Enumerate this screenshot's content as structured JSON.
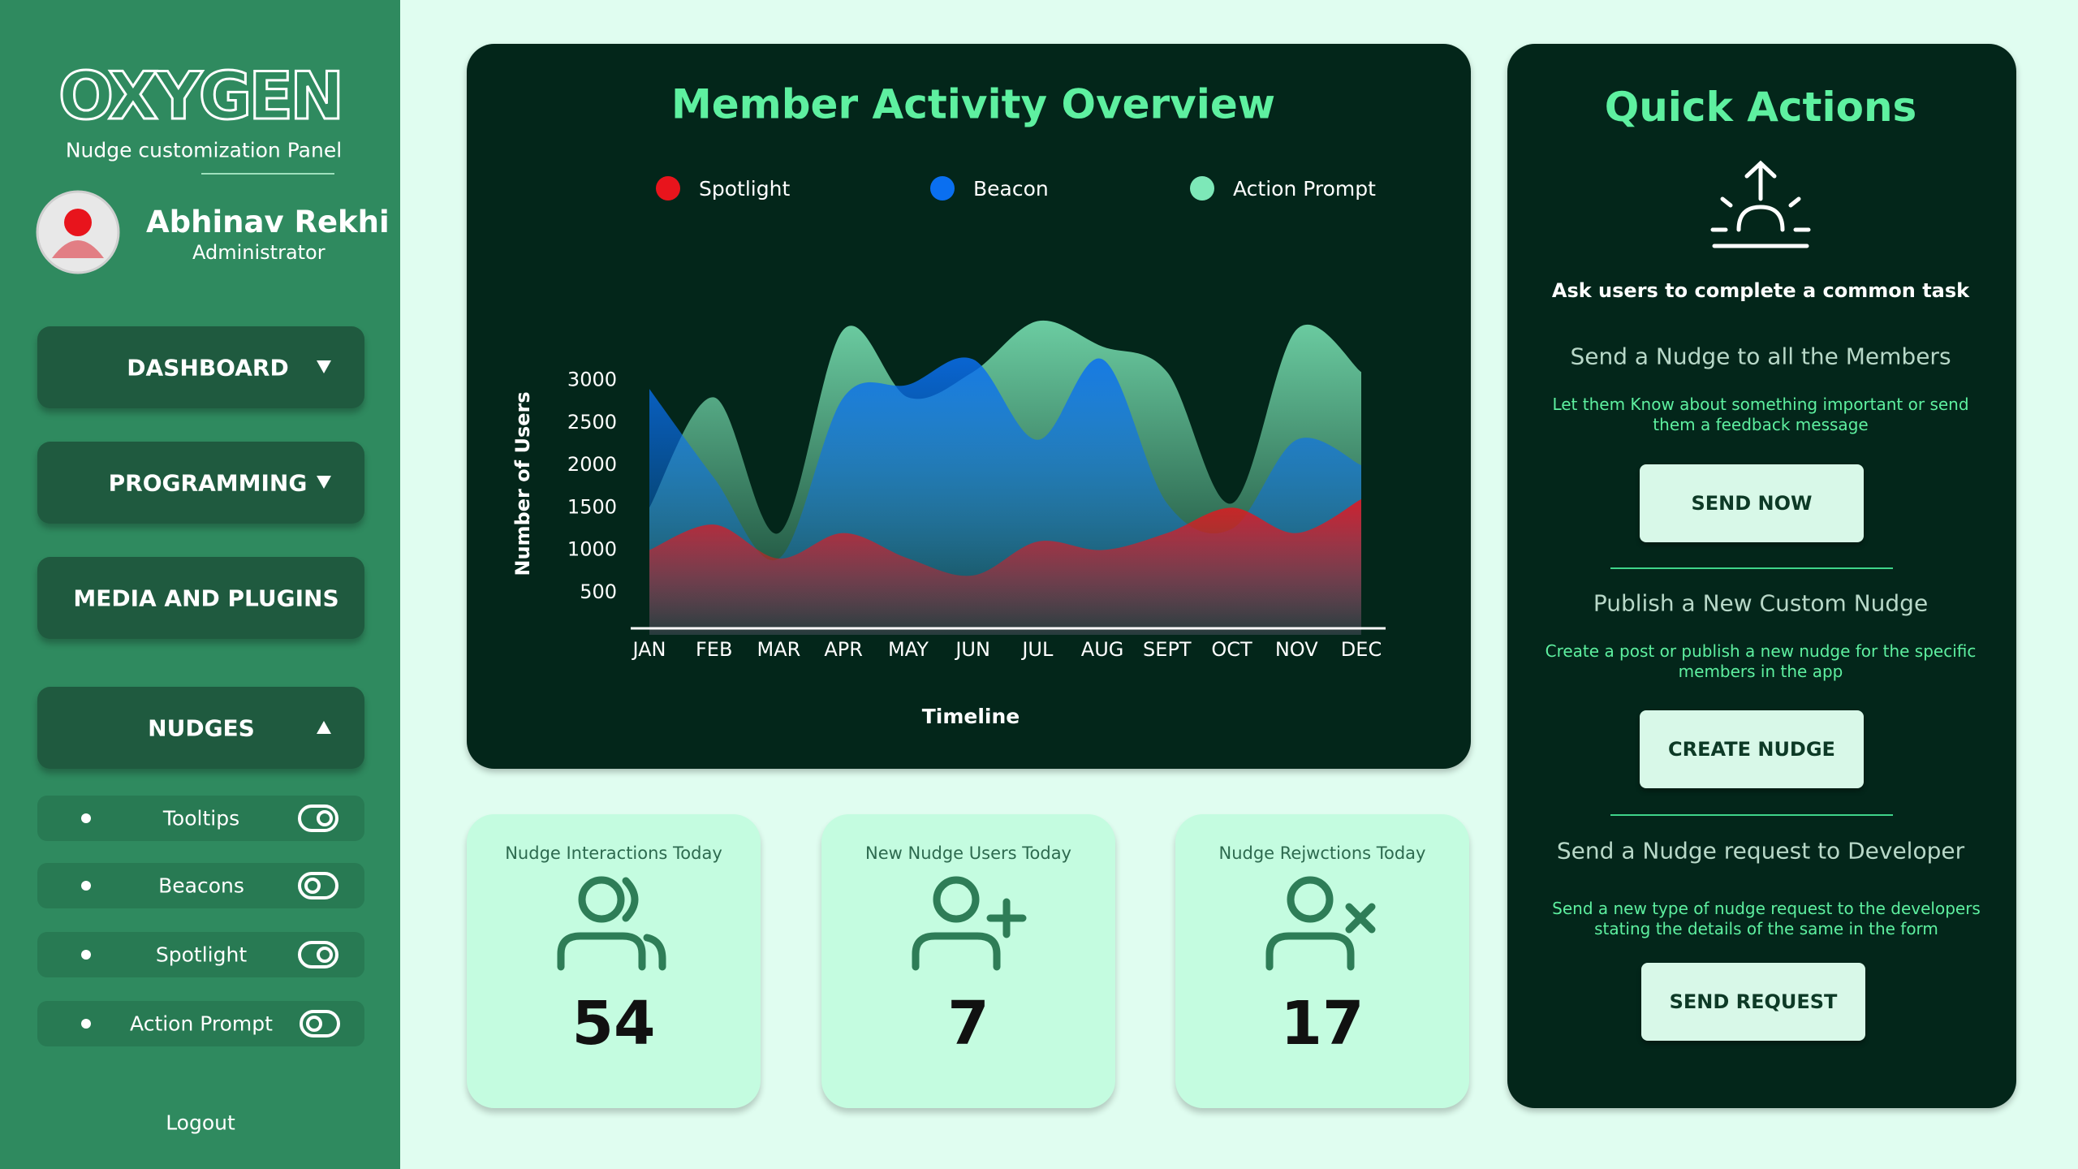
{
  "sidebar": {
    "logo": "OXYGEN",
    "subtitle": "Nudge customization Panel",
    "user": {
      "name": "Abhinav Rekhi",
      "role": "Administrator"
    },
    "menu": [
      "DASHBOARD",
      "PROGRAMMING",
      "MEDIA AND PLUGINS",
      "NUDGES"
    ],
    "submenu": [
      "Tooltips",
      "Beacons",
      "Spotlight",
      "Action Prompt"
    ],
    "logout": "Logout"
  },
  "chart_data": {
    "type": "area",
    "title": "Member Activity Overview",
    "x_label": "Timeline",
    "y_label": "Number of Users",
    "categories": [
      "JAN",
      "FEB",
      "MAR",
      "APR",
      "MAY",
      "JUN",
      "JUL",
      "AUG",
      "SEPT",
      "OCT",
      "NOV",
      "DEC"
    ],
    "series": [
      {
        "name": "Spotlight",
        "color": "#e8141c",
        "values": [
          1000,
          1300,
          900,
          1200,
          900,
          700,
          1100,
          1000,
          1200,
          1500,
          1200,
          1600
        ]
      },
      {
        "name": "Beacon",
        "color": "#0a6ff0",
        "values": [
          2900,
          1850,
          900,
          2800,
          2950,
          3250,
          2300,
          3250,
          1550,
          1250,
          2300,
          2000
        ]
      },
      {
        "name": "Action Prompt",
        "color": "#7de8b8",
        "values": [
          1500,
          2800,
          1200,
          3600,
          2800,
          3100,
          3700,
          3400,
          3100,
          1550,
          3600,
          3100
        ]
      }
    ],
    "ylim": [
      0,
      4500
    ],
    "yticks": [
      500,
      1000,
      1500,
      2000,
      2500,
      3000
    ]
  },
  "stats": [
    {
      "label": "Nudge Interactions Today",
      "value": 54
    },
    {
      "label": "New Nudge Users Today",
      "value": 7
    },
    {
      "label": "Nudge Rejwctions Today",
      "value": 17
    }
  ],
  "quick_actions": {
    "title": "Quick Actions",
    "subtitle": "Ask users to complete a common task",
    "items": [
      {
        "heading": "Send a Nudge to all the Members",
        "description": "Let them Know about something important or send them a feedback message",
        "button": "SEND NOW"
      },
      {
        "heading": "Publish a New Custom Nudge",
        "description": "Create a post or publish a new nudge for the specific members in the app",
        "button": "CREATE NUDGE"
      },
      {
        "heading": "Send a Nudge request to Developer",
        "description": "Send a new type of nudge request to the developers stating the details of the same in the form",
        "button": "SEND REQUEST"
      }
    ]
  }
}
